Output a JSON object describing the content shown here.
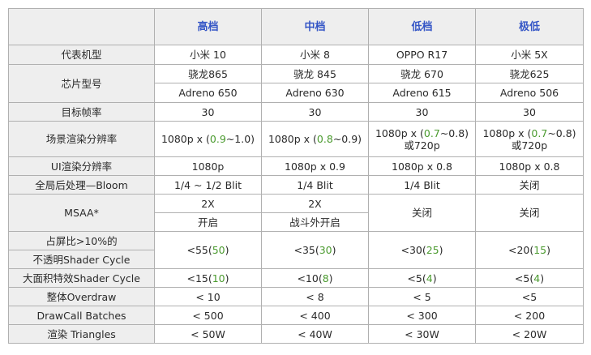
{
  "colors": {
    "header_text": "#3556c6",
    "highlight_green": "#4a9a2e",
    "label_bg": "#eeeeee",
    "border": "#b0b0b0"
  },
  "headers": [
    "高档",
    "中档",
    "低档",
    "极低"
  ],
  "rows": {
    "device": {
      "label": "代表机型",
      "values": [
        "小米 10",
        "小米 8",
        "OPPO R17",
        "小米 5X"
      ]
    },
    "chip": {
      "label": "芯片型号",
      "soc": [
        "骁龙865",
        "骁龙 845",
        "骁龙 670",
        "骁龙625"
      ],
      "gpu": [
        "Adreno 650",
        "Adreno 630",
        "Adreno 615",
        "Adreno 506"
      ]
    },
    "fps": {
      "label": "目标帧率",
      "values": [
        "30",
        "30",
        "30",
        "30"
      ]
    },
    "scene_res": {
      "label": "场景渲染分辨率",
      "cells": [
        {
          "pre": "1080p x (",
          "g": "0.9",
          "post": "~1.0)",
          "line2": ""
        },
        {
          "pre": "1080p x (",
          "g": "0.8",
          "post": "~0.9)",
          "line2": ""
        },
        {
          "pre": "1080p x (",
          "g": "0.7",
          "post": "~0.8)",
          "line2": "或720p"
        },
        {
          "pre": "1080p x (",
          "g": "0.7",
          "post": "~0.8)",
          "line2": "或720p"
        }
      ]
    },
    "ui_res": {
      "label": "UI渲染分辨率",
      "values": [
        "1080p",
        "1080p x 0.9",
        "1080p x 0.8",
        "1080p x 0.8"
      ]
    },
    "post": {
      "label": "全局后处理—Bloom",
      "values": [
        "1/4 ~ 1/2 Blit",
        "1/4 Blit",
        "1/4 Blit",
        "关闭"
      ]
    },
    "msaa": {
      "label": "MSAA*",
      "high_top": "2X",
      "high_bottom": "开启",
      "mid_top": "2X",
      "mid_bottom": "战斗外开启",
      "low": "关闭",
      "vlow": "关闭"
    },
    "opaque": {
      "label_line1": "占屏比>10%的",
      "label_line2": "不透明Shader Cycle",
      "cells": [
        {
          "main": "<55(",
          "g": "50",
          "post": ")"
        },
        {
          "main": "<35(",
          "g": "30",
          "post": ")"
        },
        {
          "main": "<30(",
          "g": "25",
          "post": ")"
        },
        {
          "main": "<20(",
          "g": "15",
          "post": ")"
        }
      ]
    },
    "effects": {
      "label": "大面积特效Shader Cycle",
      "cells": [
        {
          "main": "<15(",
          "g": "10",
          "post": ")"
        },
        {
          "main": "<10(",
          "g": "8",
          "post": ")"
        },
        {
          "main": "<5(",
          "g": "4",
          "post": ")"
        },
        {
          "main": "<5(",
          "g": "4",
          "post": ")"
        }
      ]
    },
    "overdraw": {
      "label": "整体Overdraw",
      "values": [
        "< 10",
        "< 8",
        "< 5",
        "<5"
      ]
    },
    "drawcall": {
      "label": "DrawCall Batches",
      "values": [
        "< 500",
        "< 400",
        "< 300",
        "< 200"
      ]
    },
    "triangles": {
      "label": "渲染 Triangles",
      "values": [
        "< 50W",
        "< 40W",
        "< 30W",
        "< 20W"
      ]
    }
  }
}
